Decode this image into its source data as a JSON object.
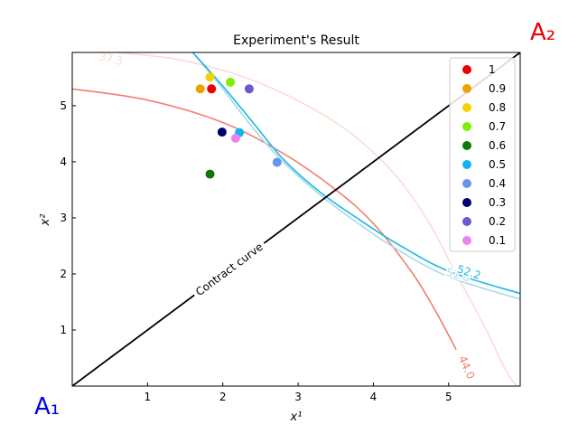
{
  "chart_data": {
    "type": "scatter",
    "title": "Experiment's Result",
    "xlabel": "x¹",
    "ylabel": "x²",
    "xlim": [
      0,
      5.95
    ],
    "ylim": [
      0,
      5.95
    ],
    "xticks": [
      1,
      2,
      3,
      4,
      5
    ],
    "yticks": [
      1,
      2,
      3,
      4,
      5
    ],
    "grid": false,
    "legend_position": "top-right",
    "corner_labels": {
      "origin_a": "A₁",
      "origin_b": "A₂"
    },
    "origin_a_color": "#0000ee",
    "origin_b_color": "#ee0000",
    "contract_curve": {
      "label": "Contract curve",
      "color": "#000000",
      "points": [
        [
          0,
          0
        ],
        [
          5.95,
          5.95
        ]
      ]
    },
    "contours": [
      {
        "label": "37.3",
        "color": "#fcdcd4",
        "points": [
          [
            0.6,
            5.95
          ],
          [
            1.5,
            5.8
          ],
          [
            2.5,
            5.4
          ],
          [
            3.5,
            4.7
          ],
          [
            4.2,
            3.9
          ],
          [
            4.7,
            3.0
          ],
          [
            5.1,
            2.0
          ],
          [
            5.5,
            1.0
          ],
          [
            5.75,
            0.3
          ],
          [
            5.9,
            0
          ]
        ]
      },
      {
        "label": "44.0",
        "color": "#f08070",
        "points": [
          [
            0,
            5.3
          ],
          [
            1.0,
            5.1
          ],
          [
            2.0,
            4.7
          ],
          [
            2.8,
            4.15
          ],
          [
            3.5,
            3.5
          ],
          [
            4.0,
            2.9
          ],
          [
            4.5,
            2.05
          ],
          [
            4.8,
            1.4
          ],
          [
            5.1,
            0.65
          ]
        ]
      },
      {
        "label": "51.8",
        "color": "#a8dbe6",
        "points": [
          [
            1.6,
            5.95
          ],
          [
            2.0,
            5.3
          ],
          [
            2.4,
            4.6
          ],
          [
            2.8,
            4.0
          ],
          [
            3.3,
            3.4
          ],
          [
            3.8,
            2.9
          ],
          [
            4.3,
            2.45
          ],
          [
            5.0,
            1.95
          ],
          [
            5.95,
            1.55
          ]
        ]
      },
      {
        "label": "52.2",
        "color": "#1ab8e6",
        "points": [
          [
            1.6,
            5.95
          ],
          [
            2.0,
            5.35
          ],
          [
            2.4,
            4.7
          ],
          [
            2.8,
            4.05
          ],
          [
            3.3,
            3.45
          ],
          [
            3.8,
            2.98
          ],
          [
            4.3,
            2.55
          ],
          [
            5.0,
            2.05
          ],
          [
            5.95,
            1.65
          ]
        ]
      }
    ],
    "series": [
      {
        "name": "1",
        "color": "#ee0000",
        "points": [
          [
            1.85,
            5.3
          ]
        ]
      },
      {
        "name": "0.9",
        "color": "#f0a000",
        "points": [
          [
            1.7,
            5.3
          ]
        ]
      },
      {
        "name": "0.8",
        "color": "#f5d200",
        "points": [
          [
            1.83,
            5.51
          ]
        ]
      },
      {
        "name": "0.7",
        "color": "#80ee00",
        "points": [
          [
            2.1,
            5.42
          ]
        ]
      },
      {
        "name": "0.6",
        "color": "#0a7a0a",
        "points": [
          [
            1.83,
            3.78
          ]
        ]
      },
      {
        "name": "0.5",
        "color": "#10b4ee",
        "points": [
          [
            2.22,
            4.52
          ]
        ]
      },
      {
        "name": "0.4",
        "color": "#6495ed",
        "points": [
          [
            2.72,
            3.99
          ]
        ]
      },
      {
        "name": "0.3",
        "color": "#000070",
        "points": [
          [
            1.99,
            4.53
          ]
        ]
      },
      {
        "name": "0.2",
        "color": "#6a5acd",
        "points": [
          [
            2.35,
            5.3
          ]
        ]
      },
      {
        "name": "0.1",
        "color": "#ee82ee",
        "points": [
          [
            2.17,
            4.42
          ]
        ]
      }
    ]
  }
}
